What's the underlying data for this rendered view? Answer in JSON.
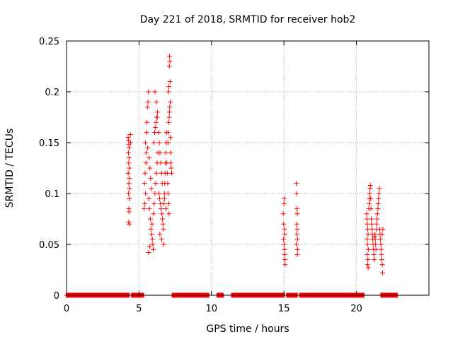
{
  "chart_data": {
    "type": "scatter",
    "title": "Day 221 of 2018, SRMTID for receiver hob2",
    "xlabel": "GPS time / hours",
    "ylabel": "SRMTID / TECUs",
    "xlim": [
      0,
      25
    ],
    "ylim": [
      0,
      0.25
    ],
    "x_ticks": [
      0,
      5,
      10,
      15,
      20
    ],
    "x_tick_labels": [
      "0",
      "5",
      "10",
      "15",
      "20"
    ],
    "y_ticks": [
      0,
      0.05,
      0.1,
      0.15,
      0.2,
      0.25
    ],
    "y_tick_labels": [
      "0",
      "0.05",
      "0.1",
      "0.15",
      "0.2",
      "0.25"
    ],
    "grid": true,
    "marker": "+",
    "color": "#ff0000",
    "zero_value_intervals": [
      [
        0.0,
        4.3
      ],
      [
        4.5,
        5.3
      ],
      [
        7.3,
        9.8
      ],
      [
        10.4,
        10.8
      ],
      [
        11.4,
        15.0
      ],
      [
        15.2,
        15.9
      ],
      [
        16.1,
        20.5
      ],
      [
        21.7,
        22.8
      ]
    ],
    "series": [
      {
        "name": "SRMTID",
        "points": [
          [
            4.25,
            0.155
          ],
          [
            4.28,
            0.152
          ],
          [
            4.3,
            0.148
          ],
          [
            4.32,
            0.145
          ],
          [
            4.27,
            0.14
          ],
          [
            4.31,
            0.135
          ],
          [
            4.29,
            0.13
          ],
          [
            4.33,
            0.125
          ],
          [
            4.26,
            0.12
          ],
          [
            4.34,
            0.115
          ],
          [
            4.3,
            0.11
          ],
          [
            4.35,
            0.105
          ],
          [
            4.28,
            0.1
          ],
          [
            4.32,
            0.095
          ],
          [
            4.3,
            0.085
          ],
          [
            4.31,
            0.082
          ],
          [
            4.29,
            0.072
          ],
          [
            4.33,
            0.07
          ],
          [
            4.4,
            0.158
          ],
          [
            4.42,
            0.15
          ],
          [
            5.35,
            0.085
          ],
          [
            5.4,
            0.09
          ],
          [
            5.45,
            0.1
          ],
          [
            5.38,
            0.11
          ],
          [
            5.42,
            0.12
          ],
          [
            5.48,
            0.13
          ],
          [
            5.5,
            0.14
          ],
          [
            5.44,
            0.15
          ],
          [
            5.55,
            0.17
          ],
          [
            5.58,
            0.185
          ],
          [
            5.62,
            0.19
          ],
          [
            5.65,
            0.2
          ],
          [
            5.52,
            0.16
          ],
          [
            5.6,
            0.145
          ],
          [
            5.7,
            0.135
          ],
          [
            5.75,
            0.125
          ],
          [
            5.8,
            0.115
          ],
          [
            5.85,
            0.105
          ],
          [
            5.68,
            0.095
          ],
          [
            5.72,
            0.085
          ],
          [
            5.78,
            0.075
          ],
          [
            5.82,
            0.065
          ],
          [
            5.88,
            0.06
          ],
          [
            5.92,
            0.055
          ],
          [
            5.95,
            0.05
          ],
          [
            5.98,
            0.045
          ],
          [
            5.66,
            0.042
          ],
          [
            5.74,
            0.048
          ],
          [
            5.9,
            0.07
          ],
          [
            6.0,
            0.08
          ],
          [
            6.05,
            0.09
          ],
          [
            6.1,
            0.1
          ],
          [
            6.15,
            0.11
          ],
          [
            6.2,
            0.12
          ],
          [
            6.25,
            0.13
          ],
          [
            6.3,
            0.14
          ],
          [
            6.02,
            0.15
          ],
          [
            6.08,
            0.16
          ],
          [
            6.12,
            0.165
          ],
          [
            6.18,
            0.17
          ],
          [
            6.22,
            0.175
          ],
          [
            6.28,
            0.18
          ],
          [
            6.26,
            0.175
          ],
          [
            6.35,
            0.16
          ],
          [
            6.4,
            0.15
          ],
          [
            6.45,
            0.14
          ],
          [
            6.5,
            0.13
          ],
          [
            6.55,
            0.12
          ],
          [
            6.6,
            0.11
          ],
          [
            6.38,
            0.1
          ],
          [
            6.42,
            0.095
          ],
          [
            6.48,
            0.09
          ],
          [
            6.52,
            0.085
          ],
          [
            6.58,
            0.08
          ],
          [
            6.62,
            0.075
          ],
          [
            6.65,
            0.07
          ],
          [
            6.68,
            0.065
          ],
          [
            6.44,
            0.06
          ],
          [
            6.56,
            0.055
          ],
          [
            6.7,
            0.05
          ],
          [
            6.1,
            0.2
          ],
          [
            6.2,
            0.19
          ],
          [
            6.72,
            0.09
          ],
          [
            6.75,
            0.1
          ],
          [
            6.78,
            0.11
          ],
          [
            6.8,
            0.12
          ],
          [
            6.82,
            0.13
          ],
          [
            6.85,
            0.14
          ],
          [
            6.88,
            0.15
          ],
          [
            6.9,
            0.16
          ],
          [
            6.92,
            0.13
          ],
          [
            6.95,
            0.12
          ],
          [
            6.98,
            0.11
          ],
          [
            7.0,
            0.15
          ],
          [
            7.02,
            0.16
          ],
          [
            7.05,
            0.17
          ],
          [
            7.08,
            0.175
          ],
          [
            7.1,
            0.18
          ],
          [
            7.12,
            0.185
          ],
          [
            7.15,
            0.19
          ],
          [
            7.03,
            0.2
          ],
          [
            7.06,
            0.205
          ],
          [
            7.09,
            0.225
          ],
          [
            7.11,
            0.235
          ],
          [
            7.13,
            0.23
          ],
          [
            7.14,
            0.21
          ],
          [
            7.16,
            0.155
          ],
          [
            7.18,
            0.14
          ],
          [
            7.2,
            0.13
          ],
          [
            7.22,
            0.125
          ],
          [
            7.25,
            0.12
          ],
          [
            7.0,
            0.1
          ],
          [
            7.04,
            0.09
          ],
          [
            7.07,
            0.08
          ],
          [
            6.86,
            0.085
          ],
          [
            6.76,
            0.095
          ],
          [
            14.95,
            0.08
          ],
          [
            15.0,
            0.09
          ],
          [
            15.02,
            0.095
          ],
          [
            14.98,
            0.07
          ],
          [
            15.04,
            0.065
          ],
          [
            15.06,
            0.06
          ],
          [
            14.97,
            0.055
          ],
          [
            15.01,
            0.05
          ],
          [
            15.03,
            0.045
          ],
          [
            15.05,
            0.04
          ],
          [
            15.07,
            0.035
          ],
          [
            15.08,
            0.03
          ],
          [
            15.85,
            0.11
          ],
          [
            15.87,
            0.1
          ],
          [
            15.9,
            0.085
          ],
          [
            15.92,
            0.08
          ],
          [
            15.88,
            0.07
          ],
          [
            15.91,
            0.065
          ],
          [
            15.89,
            0.06
          ],
          [
            15.93,
            0.055
          ],
          [
            15.86,
            0.05
          ],
          [
            15.94,
            0.045
          ],
          [
            15.92,
            0.04
          ],
          [
            20.7,
            0.08
          ],
          [
            20.72,
            0.075
          ],
          [
            20.75,
            0.07
          ],
          [
            20.78,
            0.065
          ],
          [
            20.8,
            0.06
          ],
          [
            20.74,
            0.055
          ],
          [
            20.76,
            0.05
          ],
          [
            20.82,
            0.045
          ],
          [
            20.73,
            0.04
          ],
          [
            20.79,
            0.035
          ],
          [
            20.77,
            0.03
          ],
          [
            20.81,
            0.027
          ],
          [
            20.85,
            0.085
          ],
          [
            20.88,
            0.09
          ],
          [
            20.9,
            0.095
          ],
          [
            20.92,
            0.1
          ],
          [
            20.94,
            0.105
          ],
          [
            20.96,
            0.108
          ],
          [
            20.98,
            0.095
          ],
          [
            21.0,
            0.085
          ],
          [
            21.02,
            0.075
          ],
          [
            21.05,
            0.07
          ],
          [
            21.08,
            0.065
          ],
          [
            21.1,
            0.06
          ],
          [
            21.12,
            0.055
          ],
          [
            21.15,
            0.05
          ],
          [
            21.18,
            0.045
          ],
          [
            21.2,
            0.04
          ],
          [
            21.22,
            0.035
          ],
          [
            21.25,
            0.058
          ],
          [
            21.28,
            0.06
          ],
          [
            21.3,
            0.055
          ],
          [
            21.32,
            0.05
          ],
          [
            21.35,
            0.045
          ],
          [
            21.38,
            0.065
          ],
          [
            21.4,
            0.07
          ],
          [
            21.42,
            0.075
          ],
          [
            21.45,
            0.08
          ],
          [
            21.48,
            0.085
          ],
          [
            21.5,
            0.09
          ],
          [
            21.52,
            0.095
          ],
          [
            21.55,
            0.1
          ],
          [
            21.58,
            0.105
          ],
          [
            21.6,
            0.065
          ],
          [
            21.62,
            0.06
          ],
          [
            21.65,
            0.055
          ],
          [
            21.68,
            0.05
          ],
          [
            21.7,
            0.045
          ],
          [
            21.72,
            0.04
          ],
          [
            21.75,
            0.035
          ],
          [
            21.78,
            0.03
          ],
          [
            21.8,
            0.022
          ],
          [
            21.77,
            0.06
          ],
          [
            21.82,
            0.065
          ]
        ]
      }
    ]
  }
}
